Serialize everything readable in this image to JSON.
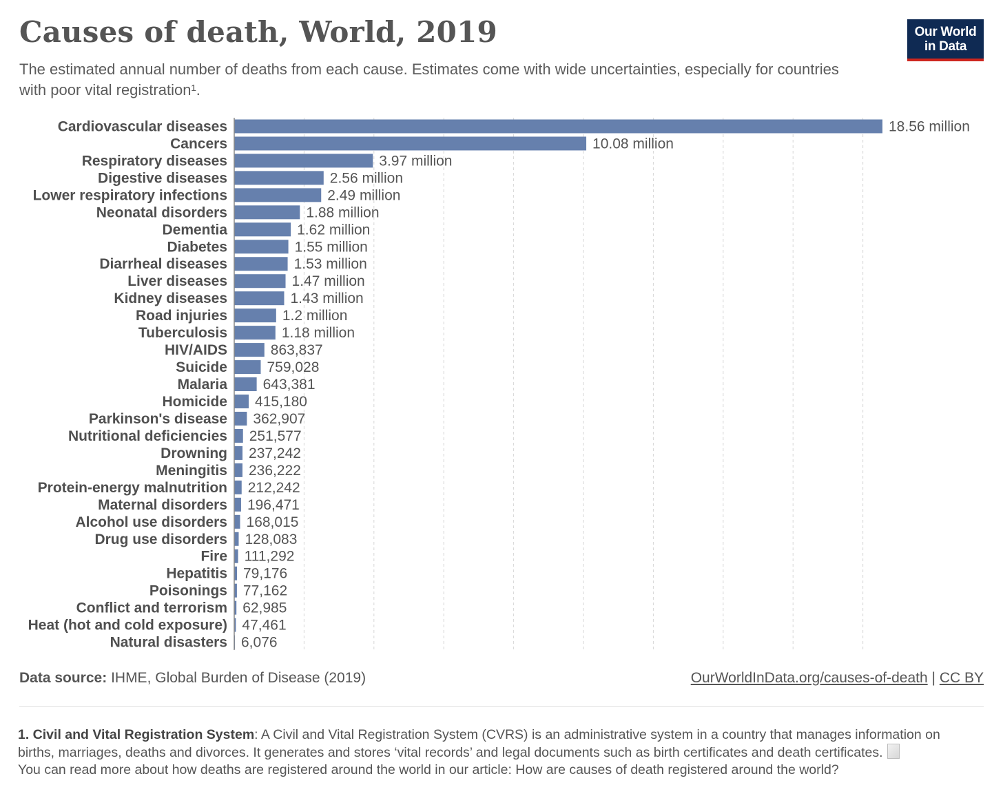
{
  "header": {
    "title": "Causes of death, World, 2019",
    "subtitle": "The estimated annual number of deaths from each cause. Estimates come with wide uncertainties, especially for countries with poor vital registration¹."
  },
  "logo": {
    "line1": "Our World",
    "line2": "in Data",
    "bg": "#0f2a53",
    "accent": "#ce261e"
  },
  "chart_data": {
    "type": "bar",
    "orientation": "horizontal",
    "bar_color": "#6680ad",
    "grid": true,
    "categories": [
      "Cardiovascular diseases",
      "Cancers",
      "Respiratory diseases",
      "Digestive diseases",
      "Lower respiratory infections",
      "Neonatal disorders",
      "Dementia",
      "Diabetes",
      "Diarrheal diseases",
      "Liver diseases",
      "Kidney diseases",
      "Road injuries",
      "Tuberculosis",
      "HIV/AIDS",
      "Suicide",
      "Malaria",
      "Homicide",
      "Parkinson's disease",
      "Nutritional deficiencies",
      "Drowning",
      "Meningitis",
      "Protein-energy malnutrition",
      "Maternal disorders",
      "Alcohol use disorders",
      "Drug use disorders",
      "Fire",
      "Hepatitis",
      "Poisonings",
      "Conflict and terrorism",
      "Heat (hot and cold exposure)",
      "Natural disasters"
    ],
    "values": [
      18560000,
      10080000,
      3970000,
      2560000,
      2490000,
      1880000,
      1620000,
      1550000,
      1530000,
      1470000,
      1430000,
      1200000,
      1180000,
      863837,
      759028,
      643381,
      415180,
      362907,
      251577,
      237242,
      236222,
      212242,
      196471,
      168015,
      128083,
      111292,
      79176,
      77162,
      62985,
      47461,
      6076
    ],
    "value_labels": [
      "18.56 million",
      "10.08 million",
      "3.97 million",
      "2.56 million",
      "2.49 million",
      "1.88 million",
      "1.62 million",
      "1.55 million",
      "1.53 million",
      "1.47 million",
      "1.43 million",
      "1.2 million",
      "1.18 million",
      "863,837",
      "759,028",
      "643,381",
      "415,180",
      "362,907",
      "251,577",
      "237,242",
      "236,222",
      "212,242",
      "196,471",
      "168,015",
      "128,083",
      "111,292",
      "79,176",
      "77,162",
      "62,985",
      "47,461",
      "6,076"
    ],
    "xlim": [
      0,
      18560000
    ],
    "grid_step": 2000000
  },
  "footer": {
    "source_label": "Data source:",
    "source_text": "IHME, Global Burden of Disease (2019)",
    "link_text": "OurWorldInData.org/causes-of-death",
    "separator": "|",
    "license": "CC BY"
  },
  "footnote": {
    "bold": "1. Civil and Vital Registration System",
    "text1": ": A Civil and Vital Registration System (CVRS) is an administrative system in a country that manages information on births, marriages, deaths and divorces. It generates and stores ‘vital records’ and legal documents such as birth certificates and death certificates.",
    "text2": "You can read more about how deaths are registered around the world in our article: How are causes of death registered around the world?"
  }
}
